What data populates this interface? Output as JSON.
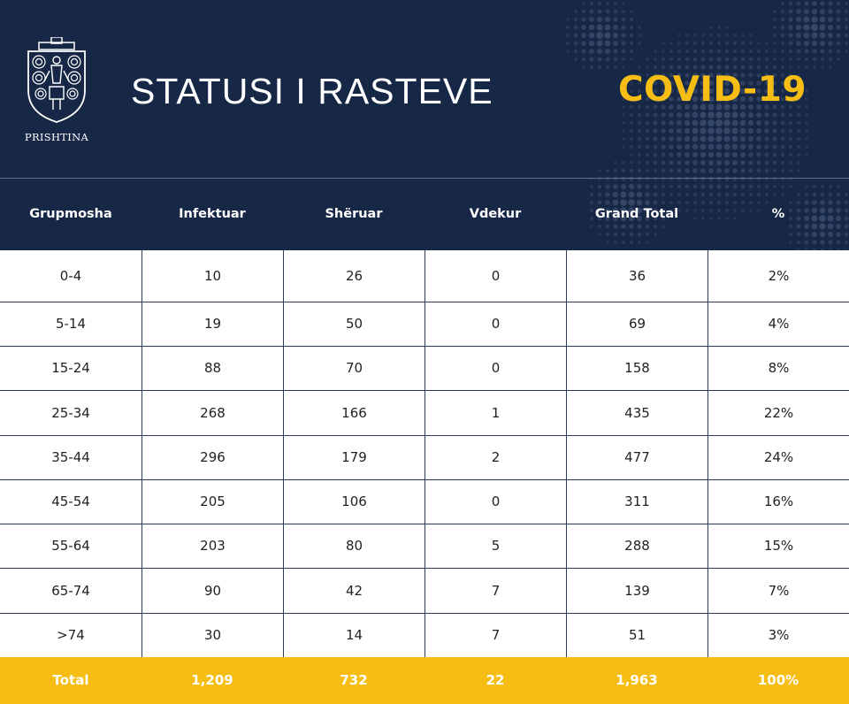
{
  "header": {
    "logo_text": "PRISHTINA",
    "title": "STATUSI I RASTEVE",
    "badge": "COVID-19",
    "logo_icon": "prishtina-coat-of-arms-icon",
    "decoration_icon": "virus-dots-icon"
  },
  "colors": {
    "navy": "#172746",
    "gold": "#f6bd14",
    "white": "#ffffff"
  },
  "table": {
    "columns": [
      "Grupmosha",
      "Infektuar",
      "Shëruar",
      "Vdekur",
      "Grand Total",
      "%"
    ],
    "rows": [
      [
        "0-4",
        "10",
        "26",
        "0",
        "36",
        "2%"
      ],
      [
        "5-14",
        "19",
        "50",
        "0",
        "69",
        "4%"
      ],
      [
        "15-24",
        "88",
        "70",
        "0",
        "158",
        "8%"
      ],
      [
        "25-34",
        "268",
        "166",
        "1",
        "435",
        "22%"
      ],
      [
        "35-44",
        "296",
        "179",
        "2",
        "477",
        "24%"
      ],
      [
        "45-54",
        "205",
        "106",
        "0",
        "311",
        "16%"
      ],
      [
        "55-64",
        "203",
        "80",
        "5",
        "288",
        "15%"
      ],
      [
        "65-74",
        "90",
        "42",
        "7",
        "139",
        "7%"
      ],
      [
        ">74",
        "30",
        "14",
        "7",
        "51",
        "3%"
      ]
    ],
    "total": [
      "Total",
      "1,209",
      "732",
      "22",
      "1,963",
      "100%"
    ]
  }
}
